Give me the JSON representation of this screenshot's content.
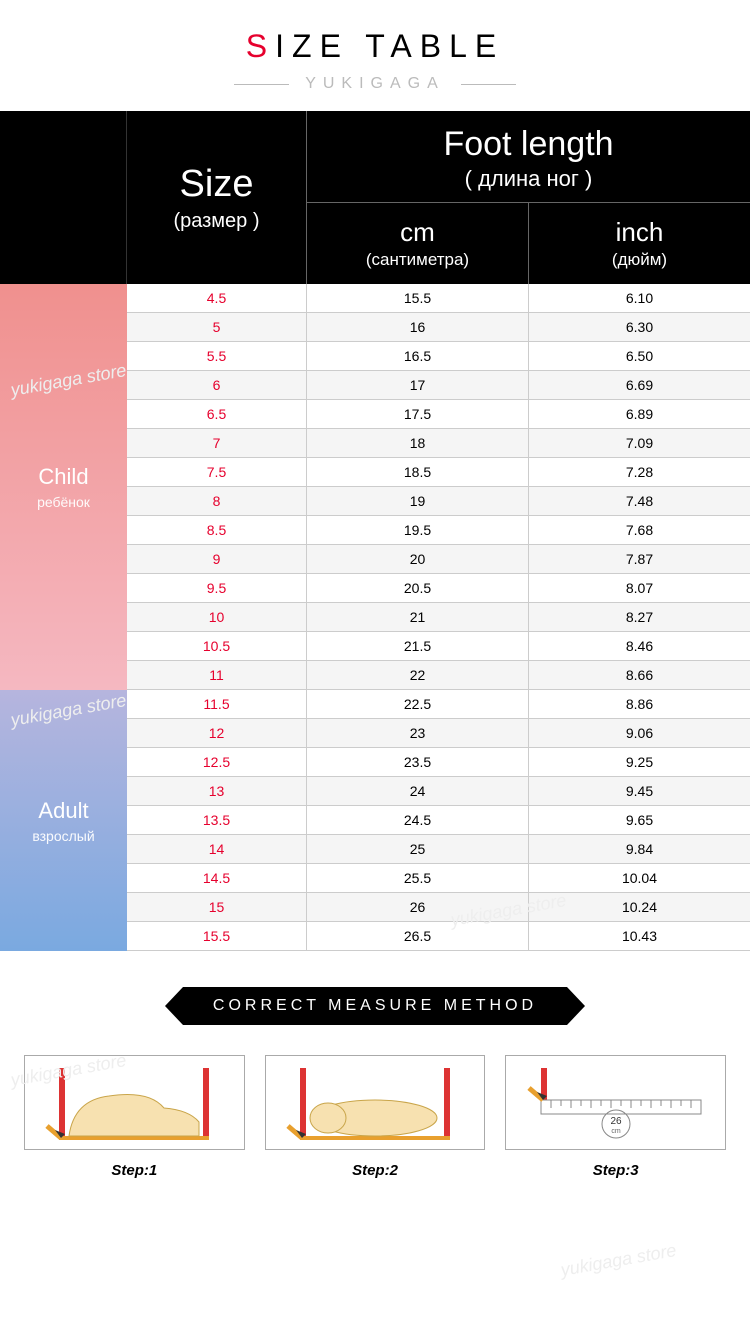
{
  "title": {
    "first_letter": "S",
    "rest": "IZE TABLE",
    "brand": "YUKIGAGA"
  },
  "header": {
    "size": {
      "main": "Size",
      "sub": "(размер )"
    },
    "foot": {
      "main": "Foot length",
      "sub": "( длина ног )"
    },
    "cm": {
      "main": "cm",
      "sub": "(сантиметра)"
    },
    "inch": {
      "main": "inch",
      "sub": "(дюйм)"
    }
  },
  "categories": {
    "child": {
      "main": "Child",
      "sub": "ребёнок"
    },
    "adult": {
      "main": "Adult",
      "sub": "взрослый"
    }
  },
  "colors": {
    "accent_red": "#e6002d",
    "child_top": "#f0908e",
    "child_bottom": "#f5b8c1",
    "adult_top": "#b6b5de",
    "adult_bottom": "#7aa9e0",
    "row_alt": "#f5f5f5",
    "border": "#cccccc"
  },
  "child_rows": 14,
  "rows": [
    {
      "size": "4.5",
      "cm": "15.5",
      "inch": "6.10"
    },
    {
      "size": "5",
      "cm": "16",
      "inch": "6.30"
    },
    {
      "size": "5.5",
      "cm": "16.5",
      "inch": "6.50"
    },
    {
      "size": "6",
      "cm": "17",
      "inch": "6.69"
    },
    {
      "size": "6.5",
      "cm": "17.5",
      "inch": "6.89"
    },
    {
      "size": "7",
      "cm": "18",
      "inch": "7.09"
    },
    {
      "size": "7.5",
      "cm": "18.5",
      "inch": "7.28"
    },
    {
      "size": "8",
      "cm": "19",
      "inch": "7.48"
    },
    {
      "size": "8.5",
      "cm": "19.5",
      "inch": "7.68"
    },
    {
      "size": "9",
      "cm": "20",
      "inch": "7.87"
    },
    {
      "size": "9.5",
      "cm": "20.5",
      "inch": "8.07"
    },
    {
      "size": "10",
      "cm": "21",
      "inch": "8.27"
    },
    {
      "size": "10.5",
      "cm": "21.5",
      "inch": "8.46"
    },
    {
      "size": "11",
      "cm": "22",
      "inch": "8.66"
    },
    {
      "size": "11.5",
      "cm": "22.5",
      "inch": "8.86"
    },
    {
      "size": "12",
      "cm": "23",
      "inch": "9.06"
    },
    {
      "size": "12.5",
      "cm": "23.5",
      "inch": "9.25"
    },
    {
      "size": "13",
      "cm": "24",
      "inch": "9.45"
    },
    {
      "size": "13.5",
      "cm": "24.5",
      "inch": "9.65"
    },
    {
      "size": "14",
      "cm": "25",
      "inch": "9.84"
    },
    {
      "size": "14.5",
      "cm": "25.5",
      "inch": "10.04"
    },
    {
      "size": "15",
      "cm": "26",
      "inch": "10.24"
    },
    {
      "size": "15.5",
      "cm": "26.5",
      "inch": "10.43"
    }
  ],
  "measure": {
    "heading": "CORRECT MEASURE METHOD",
    "steps": [
      {
        "label": "Step:1"
      },
      {
        "label": "Step:2"
      },
      {
        "label": "Step:3",
        "ruler_value": "26",
        "ruler_unit": "cm"
      }
    ]
  },
  "watermark_text": "yukigaga store"
}
